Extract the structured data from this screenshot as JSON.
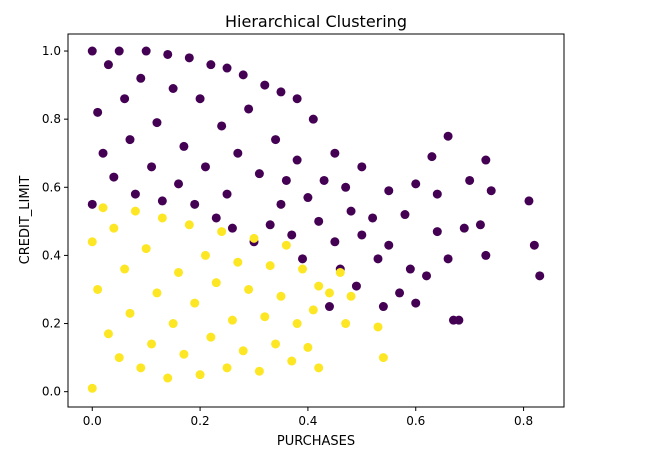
{
  "chart_data": {
    "type": "scatter",
    "title": "Hierarchical Clustering",
    "xlabel": "PURCHASES",
    "ylabel": "CREDIT_LIMIT",
    "xlim": [
      -0.045,
      0.875
    ],
    "ylim": [
      -0.045,
      1.05
    ],
    "xticks": [
      0.0,
      0.2,
      0.4,
      0.6,
      0.8
    ],
    "xtick_labels": [
      "0.0",
      "0.2",
      "0.4",
      "0.6",
      "0.8"
    ],
    "yticks": [
      0.0,
      0.2,
      0.4,
      0.6,
      0.8,
      1.0
    ],
    "ytick_labels": [
      "0.0",
      "0.2",
      "0.4",
      "0.6",
      "0.8",
      "1.0"
    ],
    "grid": false,
    "colors": {
      "cluster_0": "#440154",
      "cluster_1": "#fde725",
      "axes": "#000000"
    },
    "series": [
      {
        "cluster": 0,
        "color": "#440154",
        "points": [
          [
            0.83,
            0.34
          ],
          [
            0.82,
            0.43
          ],
          [
            0.81,
            0.56
          ],
          [
            0.74,
            0.59
          ],
          [
            0.73,
            0.68
          ],
          [
            0.73,
            0.4
          ],
          [
            0.72,
            0.49
          ],
          [
            0.7,
            0.62
          ],
          [
            0.69,
            0.48
          ],
          [
            0.68,
            0.21
          ],
          [
            0.67,
            0.21
          ],
          [
            0.66,
            0.39
          ],
          [
            0.66,
            0.75
          ],
          [
            0.64,
            0.58
          ],
          [
            0.64,
            0.47
          ],
          [
            0.63,
            0.69
          ],
          [
            0.62,
            0.34
          ],
          [
            0.6,
            0.26
          ],
          [
            0.6,
            0.61
          ],
          [
            0.59,
            0.36
          ],
          [
            0.58,
            0.52
          ],
          [
            0.57,
            0.29
          ],
          [
            0.55,
            0.59
          ],
          [
            0.55,
            0.43
          ],
          [
            0.54,
            0.25
          ],
          [
            0.53,
            0.39
          ],
          [
            0.52,
            0.51
          ],
          [
            0.5,
            0.46
          ],
          [
            0.5,
            0.66
          ],
          [
            0.49,
            0.31
          ],
          [
            0.48,
            0.53
          ],
          [
            0.47,
            0.6
          ],
          [
            0.46,
            0.36
          ],
          [
            0.45,
            0.7
          ],
          [
            0.45,
            0.44
          ],
          [
            0.44,
            0.25
          ],
          [
            0.43,
            0.62
          ],
          [
            0.42,
            0.5
          ],
          [
            0.41,
            0.8
          ],
          [
            0.4,
            0.57
          ],
          [
            0.39,
            0.39
          ],
          [
            0.38,
            0.86
          ],
          [
            0.38,
            0.68
          ],
          [
            0.37,
            0.46
          ],
          [
            0.36,
            0.62
          ],
          [
            0.35,
            0.88
          ],
          [
            0.35,
            0.55
          ],
          [
            0.34,
            0.74
          ],
          [
            0.33,
            0.49
          ],
          [
            0.32,
            0.9
          ],
          [
            0.31,
            0.64
          ],
          [
            0.3,
            0.44
          ],
          [
            0.29,
            0.83
          ],
          [
            0.28,
            0.93
          ],
          [
            0.27,
            0.7
          ],
          [
            0.26,
            0.48
          ],
          [
            0.25,
            0.95
          ],
          [
            0.25,
            0.58
          ],
          [
            0.24,
            0.78
          ],
          [
            0.23,
            0.51
          ],
          [
            0.22,
            0.96
          ],
          [
            0.21,
            0.66
          ],
          [
            0.2,
            0.86
          ],
          [
            0.19,
            0.55
          ],
          [
            0.18,
            0.98
          ],
          [
            0.17,
            0.72
          ],
          [
            0.16,
            0.61
          ],
          [
            0.15,
            0.89
          ],
          [
            0.14,
            0.99
          ],
          [
            0.13,
            0.56
          ],
          [
            0.12,
            0.79
          ],
          [
            0.11,
            0.66
          ],
          [
            0.1,
            1.0
          ],
          [
            0.09,
            0.92
          ],
          [
            0.08,
            0.58
          ],
          [
            0.07,
            0.74
          ],
          [
            0.06,
            0.86
          ],
          [
            0.05,
            1.0
          ],
          [
            0.04,
            0.63
          ],
          [
            0.03,
            0.96
          ],
          [
            0.02,
            0.7
          ],
          [
            0.01,
            0.82
          ],
          [
            0.0,
            1.0
          ],
          [
            0.0,
            0.55
          ]
        ]
      },
      {
        "cluster": 1,
        "color": "#fde725",
        "points": [
          [
            0.54,
            0.1
          ],
          [
            0.53,
            0.19
          ],
          [
            0.48,
            0.28
          ],
          [
            0.47,
            0.2
          ],
          [
            0.46,
            0.35
          ],
          [
            0.44,
            0.29
          ],
          [
            0.42,
            0.31
          ],
          [
            0.42,
            0.07
          ],
          [
            0.41,
            0.24
          ],
          [
            0.4,
            0.13
          ],
          [
            0.39,
            0.36
          ],
          [
            0.38,
            0.2
          ],
          [
            0.37,
            0.09
          ],
          [
            0.36,
            0.43
          ],
          [
            0.35,
            0.28
          ],
          [
            0.34,
            0.14
          ],
          [
            0.33,
            0.37
          ],
          [
            0.32,
            0.22
          ],
          [
            0.31,
            0.06
          ],
          [
            0.3,
            0.45
          ],
          [
            0.29,
            0.3
          ],
          [
            0.28,
            0.12
          ],
          [
            0.27,
            0.38
          ],
          [
            0.26,
            0.21
          ],
          [
            0.25,
            0.07
          ],
          [
            0.24,
            0.47
          ],
          [
            0.23,
            0.32
          ],
          [
            0.22,
            0.16
          ],
          [
            0.21,
            0.4
          ],
          [
            0.2,
            0.05
          ],
          [
            0.19,
            0.26
          ],
          [
            0.18,
            0.49
          ],
          [
            0.17,
            0.11
          ],
          [
            0.16,
            0.35
          ],
          [
            0.15,
            0.2
          ],
          [
            0.14,
            0.04
          ],
          [
            0.13,
            0.51
          ],
          [
            0.12,
            0.29
          ],
          [
            0.11,
            0.14
          ],
          [
            0.1,
            0.42
          ],
          [
            0.09,
            0.07
          ],
          [
            0.08,
            0.53
          ],
          [
            0.07,
            0.23
          ],
          [
            0.06,
            0.36
          ],
          [
            0.05,
            0.1
          ],
          [
            0.04,
            0.48
          ],
          [
            0.03,
            0.17
          ],
          [
            0.02,
            0.54
          ],
          [
            0.01,
            0.3
          ],
          [
            0.0,
            0.01
          ],
          [
            0.0,
            0.44
          ]
        ]
      }
    ]
  }
}
